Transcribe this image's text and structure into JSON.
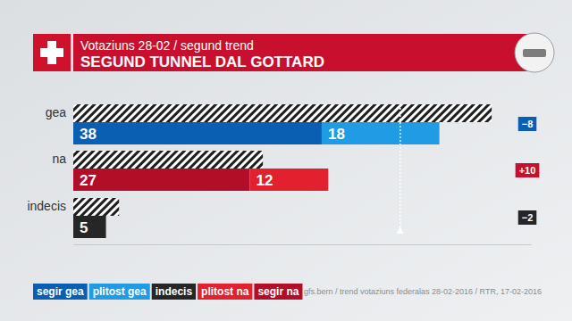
{
  "chart_data": {
    "type": "bar",
    "orientation": "horizontal",
    "stacked": true,
    "data_labels": true,
    "tick_labels": false,
    "subtitle": "Votaziuns 28-02 / segund trend",
    "title": "SEGUND TUNNEL DAL GOTTARD",
    "categories": [
      "gea",
      "na",
      "indecis"
    ],
    "series": [
      {
        "name": "segir gea",
        "color": "#0b5fb3",
        "values": [
          38,
          null,
          null
        ]
      },
      {
        "name": "plitost gea",
        "color": "#1f9ce4",
        "values": [
          18,
          null,
          null
        ]
      },
      {
        "name": "indecis",
        "color": "#262626",
        "values": [
          null,
          null,
          5
        ]
      },
      {
        "name": "plitost na",
        "color": "#e2202e",
        "values": [
          null,
          12,
          null
        ]
      },
      {
        "name": "segir na",
        "color": "#b20e27",
        "values": [
          null,
          27,
          null
        ]
      }
    ],
    "previous_values": [
      64,
      29,
      7
    ],
    "change": [
      -8,
      10,
      -2
    ],
    "change_labels": [
      "−8",
      "+10",
      "−2"
    ],
    "reference_line": 50,
    "xlim": [
      0,
      70
    ],
    "legend": "bottom left",
    "source": "gfs.bern / trend votaziuns federalas 28-02-2016 / RTR, 17-02-2016"
  }
}
